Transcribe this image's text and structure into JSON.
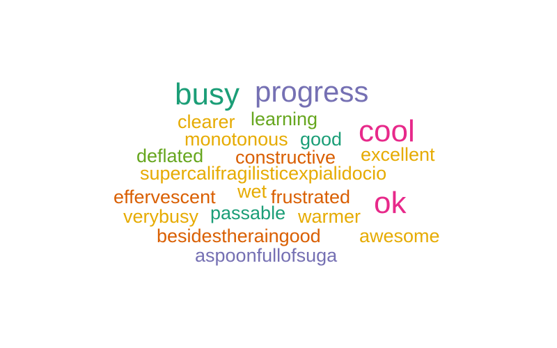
{
  "palette": {
    "teal": "#1b9e77",
    "orange": "#d95f02",
    "purple": "#7570b3",
    "pink": "#e7298a",
    "green": "#66a61e",
    "gold": "#e6ab02"
  },
  "words": [
    {
      "text": "busy",
      "color": "#1b9e77"
    },
    {
      "text": "progress",
      "color": "#7570b3"
    },
    {
      "text": "clearer",
      "color": "#e6ab02"
    },
    {
      "text": "learning",
      "color": "#66a61e"
    },
    {
      "text": "cool",
      "color": "#e7298a"
    },
    {
      "text": "monotonous",
      "color": "#e6ab02"
    },
    {
      "text": "good",
      "color": "#1b9e77"
    },
    {
      "text": "deflated",
      "color": "#66a61e"
    },
    {
      "text": "constructive",
      "color": "#d95f02"
    },
    {
      "text": "excellent",
      "color": "#e6ab02"
    },
    {
      "text": "supercalifragilisticexpialidocio",
      "color": "#e6ab02"
    },
    {
      "text": "effervescent",
      "color": "#d95f02"
    },
    {
      "text": "wet",
      "color": "#e6ab02"
    },
    {
      "text": "frustrated",
      "color": "#d95f02"
    },
    {
      "text": "ok",
      "color": "#e7298a"
    },
    {
      "text": "verybusy",
      "color": "#e6ab02"
    },
    {
      "text": "passable",
      "color": "#1b9e77"
    },
    {
      "text": "warmer",
      "color": "#e6ab02"
    },
    {
      "text": "besidestheraingood",
      "color": "#d95f02"
    },
    {
      "text": "awesome",
      "color": "#e6ab02"
    },
    {
      "text": "aspoonfullofsuga",
      "color": "#7570b3"
    }
  ]
}
